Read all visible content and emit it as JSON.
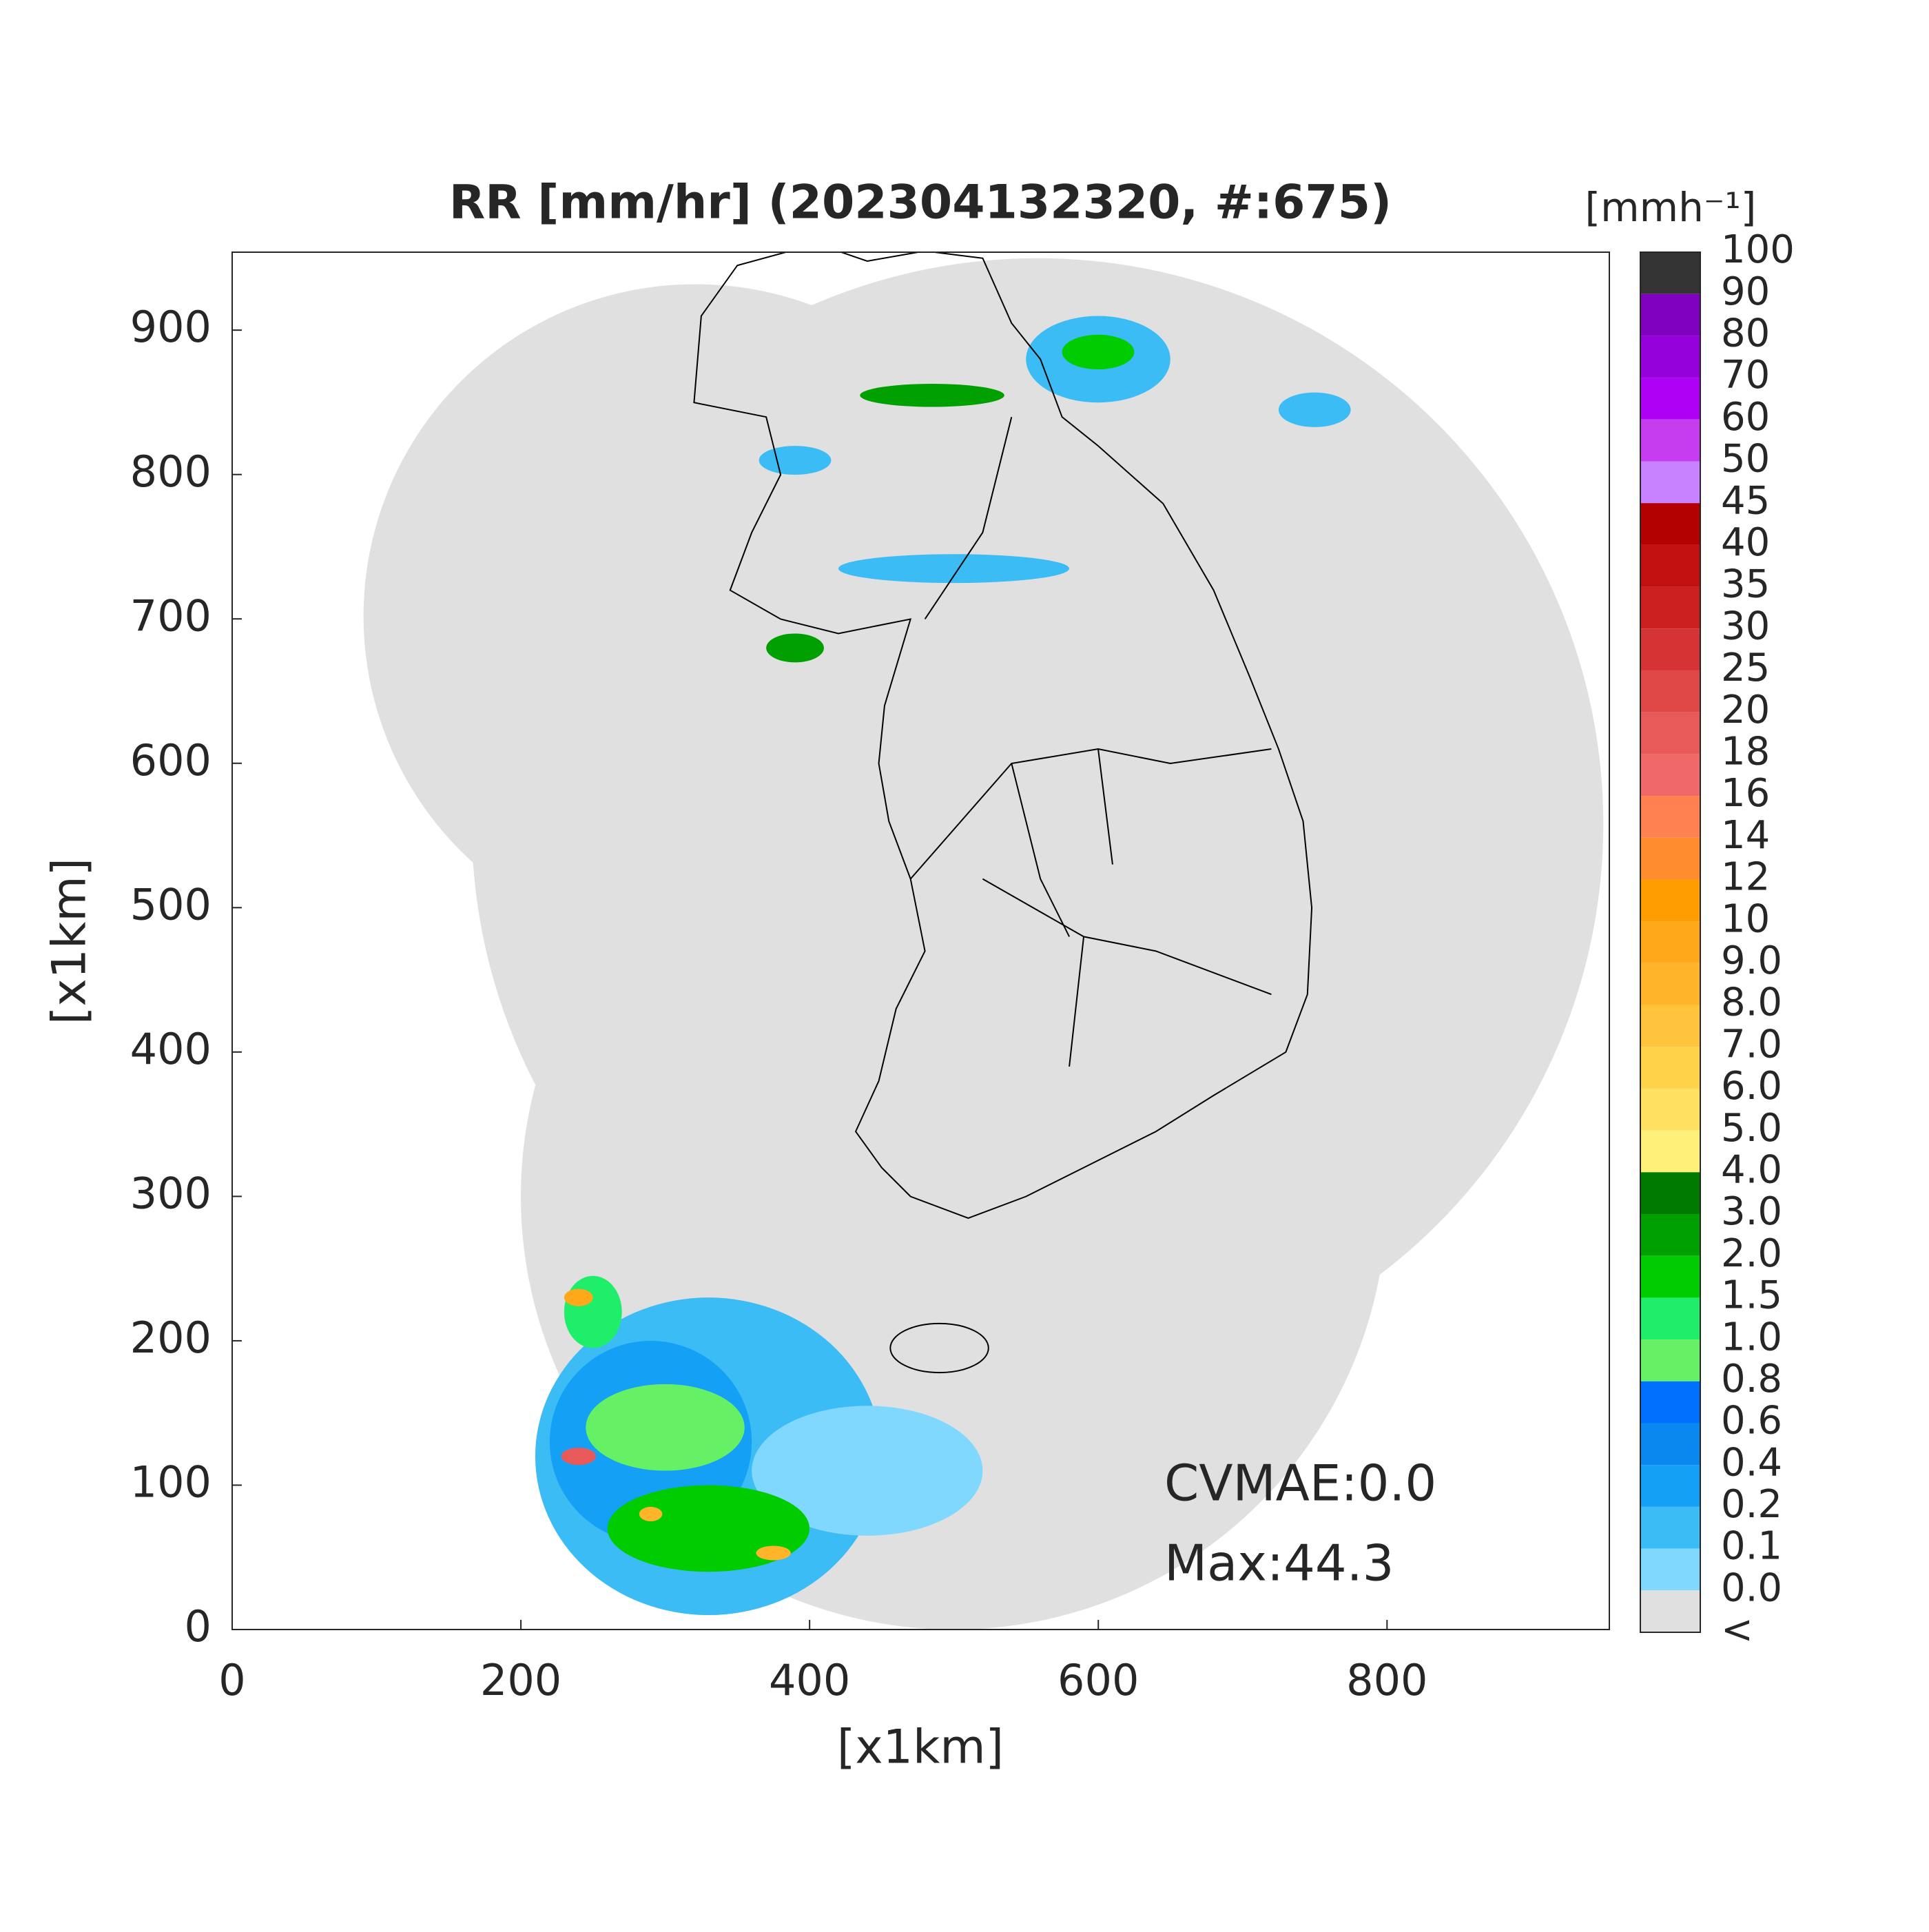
{
  "title": "RR [mm/hr] (202304132320, #:675)",
  "x_label": "[x1km]",
  "y_label": "[x1km]",
  "xlim": [
    0,
    954
  ],
  "ylim": [
    0,
    954
  ],
  "xticks": [
    0,
    200,
    400,
    600,
    800
  ],
  "yticks": [
    0,
    100,
    200,
    300,
    400,
    500,
    600,
    700,
    800,
    900
  ],
  "annotations": [
    "CVMAE:0.0",
    "Max:44.3"
  ],
  "colorbar": {
    "unit": "[mmh⁻¹]",
    "labels": [
      "100",
      "90",
      "80",
      "70",
      "60",
      "50",
      "45",
      "40",
      "35",
      "30",
      "25",
      "20",
      "18",
      "16",
      "14",
      "12",
      "10",
      "9.0",
      "8.0",
      "7.0",
      "6.0",
      "5.0",
      "4.0",
      "3.0",
      "2.0",
      "1.5",
      "1.0",
      "0.8",
      "0.6",
      "0.4",
      "0.2",
      "0.1",
      "0.0",
      "<"
    ],
    "colors": [
      "#333333",
      "#7f00bf",
      "#9300d9",
      "#ad00f5",
      "#c63df0",
      "#c882ff",
      "#b30000",
      "#c20f0f",
      "#cc2020",
      "#d63434",
      "#e04848",
      "#e85a5a",
      "#f06868",
      "#ff8050",
      "#ff8c2e",
      "#ff9c00",
      "#ffa91a",
      "#ffb42a",
      "#ffc33c",
      "#ffd24a",
      "#ffe060",
      "#fff07a",
      "#007a00",
      "#00a000",
      "#00cc00",
      "#1fee6a",
      "#66f066",
      "#0070ff",
      "#0a88f0",
      "#14a0f5",
      "#3cbcf5",
      "#80d8ff",
      "#e0e0e0",
      "#ffffff"
    ]
  }
}
